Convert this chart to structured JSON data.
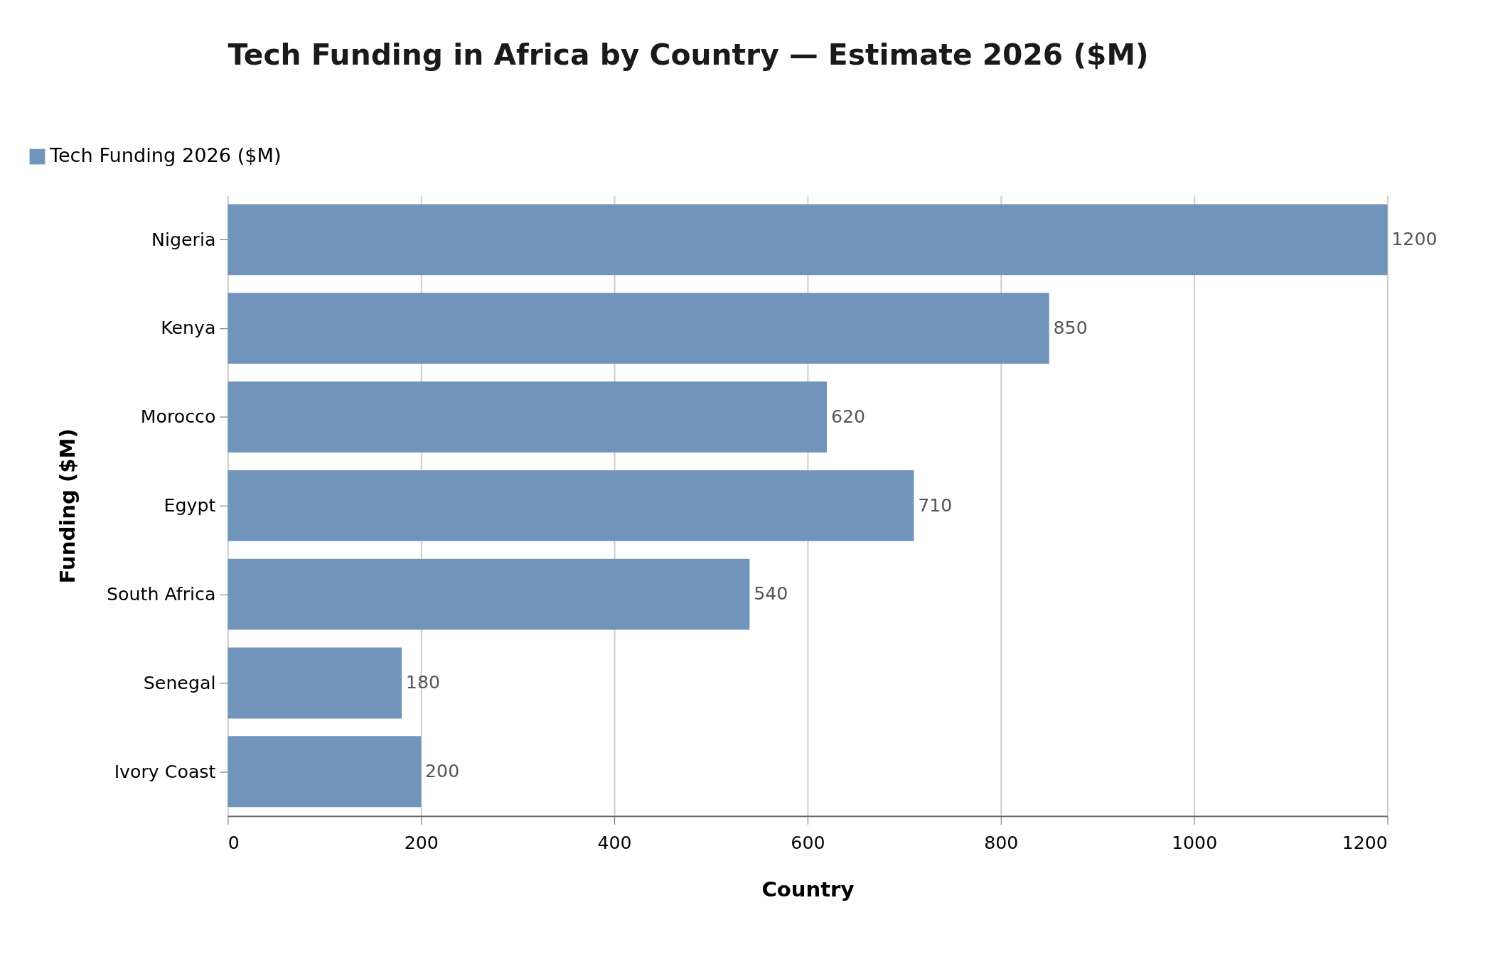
{
  "chart_data": {
    "type": "bar",
    "orientation": "horizontal",
    "title": "Tech Funding in Africa by Country — Estimate 2026 ($M)",
    "xlabel": "Country",
    "ylabel": "Funding ($M)",
    "categories": [
      "Nigeria",
      "Kenya",
      "Morocco",
      "Egypt",
      "South Africa",
      "Senegal",
      "Ivory Coast"
    ],
    "series": [
      {
        "name": "Tech Funding 2026 ($M)",
        "color": "#7195ba",
        "values": [
          1200,
          850,
          620,
          710,
          540,
          180,
          200
        ]
      }
    ],
    "xlim": [
      0,
      1200
    ],
    "xticks": [
      0,
      200,
      400,
      600,
      800,
      1000,
      1200
    ],
    "grid": "x",
    "legend": "top left",
    "data_labels": true
  }
}
